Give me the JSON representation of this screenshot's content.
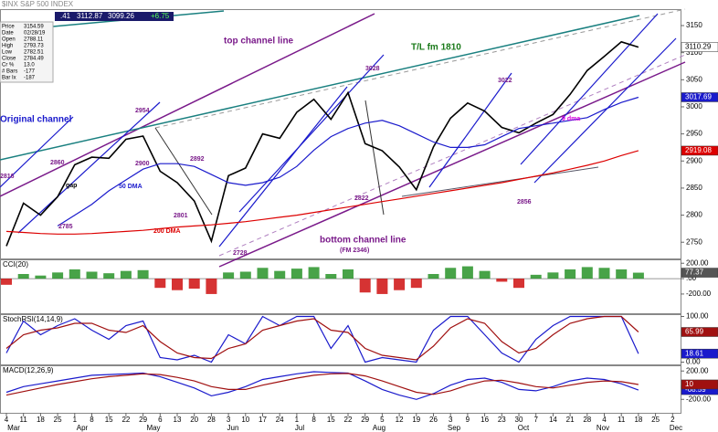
{
  "header": {
    "symbol": "$INX S&P 500 INDEX",
    "quote": [
      ".41",
      "3112.87",
      "3099.26",
      "+6.75"
    ]
  },
  "data_window": [
    [
      "Price",
      "3154.59"
    ],
    [
      "Date",
      "02/28/19"
    ],
    [
      "Open",
      "2788.11"
    ],
    [
      "High",
      "2793.73"
    ],
    [
      "Low",
      "2782.51"
    ],
    [
      "Close",
      "2784.49"
    ],
    [
      "Cr %",
      "13.0"
    ],
    [
      "# Bars",
      "-177"
    ],
    [
      "Bar Ix",
      "-187"
    ]
  ],
  "chart_data": [
    {
      "type": "line",
      "categories": [
        "4",
        "11",
        "18",
        "25",
        "1",
        "8",
        "15",
        "22",
        "29",
        "6",
        "13",
        "20",
        "28",
        "3",
        "10",
        "17",
        "24",
        "1",
        "8",
        "15",
        "22",
        "29",
        "5",
        "12",
        "19",
        "26",
        "3",
        "9",
        "16",
        "23",
        "30",
        "7",
        "14",
        "21",
        "28",
        "4",
        "11",
        "18",
        "25",
        "2"
      ],
      "months": [
        "Mar",
        "Apr",
        "May",
        "Jun",
        "Jul",
        "Aug",
        "Sep",
        "Oct",
        "Nov",
        "Dec"
      ],
      "ylim": [
        2720,
        3177
      ],
      "yticks": [
        2750,
        2800,
        2850,
        2900,
        2950,
        3000,
        3050,
        3100,
        3150
      ],
      "series": [
        {
          "name": "S&P 500",
          "color": "#000000",
          "values": [
            2743,
            2822,
            2800,
            2834,
            2893,
            2907,
            2905,
            2940,
            2946,
            2881,
            2860,
            2826,
            2752,
            2873,
            2887,
            2950,
            2942,
            2990,
            3014,
            2977,
            3026,
            2932,
            2919,
            2889,
            2847,
            2926,
            2979,
            3007,
            2992,
            2962,
            2952,
            2970,
            2986,
            3023,
            3067,
            3093,
            3120,
            3110.29,
            null,
            null
          ]
        },
        {
          "name": "50 DMA",
          "color": "#1a1acc",
          "values": [
            null,
            null,
            null,
            2780,
            2800,
            2820,
            2845,
            2865,
            2885,
            2895,
            2895,
            2890,
            2875,
            2860,
            2855,
            2860,
            2870,
            2890,
            2920,
            2945,
            2960,
            2970,
            2975,
            2965,
            2950,
            2935,
            2925,
            2925,
            2930,
            2945,
            2960,
            2965,
            2970,
            2975,
            2980,
            2995,
            3008,
            3017.69,
            null,
            null
          ]
        },
        {
          "name": "200 DMA",
          "color": "#dd0000",
          "values": [
            2770,
            2768,
            2766,
            2765,
            2765,
            2766,
            2768,
            2770,
            2772,
            2775,
            2778,
            2780,
            2782,
            2785,
            2788,
            2792,
            2796,
            2800,
            2805,
            2810,
            2815,
            2820,
            2825,
            2830,
            2835,
            2840,
            2845,
            2850,
            2855,
            2860,
            2866,
            2872,
            2878,
            2885,
            2892,
            2900,
            2910,
            2919.08,
            null,
            null
          ]
        }
      ],
      "annotations": [
        {
          "text": "top channel line",
          "color": "#7a1a8a"
        },
        {
          "text": "T/L fm 1810",
          "color": "#1a7a1a"
        },
        {
          "text": "Original channel",
          "color": "#1a1acc"
        },
        {
          "text": "bottom channel line",
          "color": "#7a1a8a"
        },
        {
          "text": "(FM 2346)",
          "color": "#7a1a8a"
        },
        {
          "text": "2954",
          "color": "#7a1a8a"
        },
        {
          "text": "3028",
          "color": "#7a1a8a"
        },
        {
          "text": "3022",
          "color": "#7a1a8a"
        },
        {
          "text": "2728",
          "color": "#7a1a8a"
        },
        {
          "text": "2822",
          "color": "#7a1a8a"
        },
        {
          "text": "2856",
          "color": "#7a1a8a"
        },
        {
          "text": "50 DMA",
          "color": "#1a1acc"
        },
        {
          "text": "200 DMA",
          "color": "#dd0000"
        },
        {
          "text": "9 dma",
          "color": "#dd00dd"
        },
        {
          "text": "2900",
          "color": "#7a1a8a"
        },
        {
          "text": "2892",
          "color": "#7a1a8a"
        },
        {
          "text": "2801",
          "color": "#7a1a8a"
        },
        {
          "text": "2860",
          "color": "#7a1a8a"
        },
        {
          "text": "2785",
          "color": "#7a1a8a"
        },
        {
          "text": "2816",
          "color": "#7a1a8a"
        },
        {
          "text": "gap",
          "color": "#000000"
        }
      ]
    },
    {
      "type": "bar",
      "title": "CCI(20)",
      "color": "#1a8c1a",
      "negative_color": "#cc0000",
      "ylim": [
        -450,
        250
      ],
      "yticks": [
        {
          "value": 200,
          "label": "200.00"
        },
        {
          "value": 0,
          "label": ".00"
        },
        {
          "value": -200,
          "label": "-200.00"
        }
      ],
      "values": [
        -80,
        60,
        40,
        80,
        120,
        90,
        70,
        100,
        110,
        -120,
        -150,
        -130,
        -200,
        80,
        90,
        140,
        100,
        130,
        150,
        60,
        120,
        -180,
        -200,
        -150,
        -120,
        60,
        140,
        160,
        100,
        -40,
        -120,
        50,
        80,
        120,
        150,
        140,
        120,
        77.37,
        null,
        null
      ]
    },
    {
      "type": "line",
      "title": "StochRSI(14,14,9)",
      "ylim": [
        -5,
        105
      ],
      "yticks": [
        {
          "value": 100,
          "label": "100.00"
        },
        {
          "value": 0,
          "label": "0.00"
        }
      ],
      "series": [
        {
          "name": "StochRSI",
          "color": "#1a1acc",
          "values": [
            20,
            90,
            60,
            80,
            95,
            70,
            50,
            80,
            90,
            10,
            5,
            15,
            0,
            60,
            40,
            100,
            80,
            100,
            100,
            30,
            80,
            0,
            10,
            5,
            0,
            70,
            100,
            100,
            60,
            20,
            0,
            50,
            80,
            100,
            100,
            100,
            100,
            18.61,
            null,
            null
          ]
        },
        {
          "name": "Signal",
          "color": "#a01010",
          "values": [
            30,
            60,
            70,
            75,
            85,
            85,
            70,
            65,
            80,
            45,
            20,
            10,
            8,
            30,
            40,
            70,
            80,
            90,
            95,
            70,
            65,
            30,
            15,
            10,
            5,
            35,
            75,
            95,
            85,
            45,
            20,
            30,
            60,
            85,
            95,
            100,
            100,
            65.99,
            null,
            null
          ]
        }
      ]
    },
    {
      "type": "line",
      "title": "MACD(12,26,9)",
      "ylim": [
        -390,
        280
      ],
      "yticks": [
        {
          "value": 200,
          "label": "200.00"
        },
        {
          "value": -200,
          "label": "-200.00"
        }
      ],
      "series": [
        {
          "name": "MACD",
          "color": "#1a1acc",
          "values": [
            -100,
            -20,
            20,
            60,
            100,
            140,
            150,
            160,
            170,
            120,
            40,
            -40,
            -150,
            -100,
            -20,
            80,
            120,
            160,
            190,
            180,
            170,
            60,
            -60,
            -140,
            -200,
            -120,
            0,
            80,
            100,
            40,
            -60,
            -80,
            -20,
            60,
            100,
            80,
            20,
            -68.59,
            null,
            null
          ]
        },
        {
          "name": "Signal",
          "color": "#a01010",
          "values": [
            -140,
            -90,
            -40,
            10,
            50,
            90,
            120,
            140,
            160,
            150,
            110,
            60,
            -20,
            -60,
            -60,
            0,
            50,
            100,
            140,
            160,
            165,
            130,
            60,
            -20,
            -100,
            -130,
            -80,
            0,
            60,
            70,
            30,
            -20,
            -40,
            0,
            40,
            60,
            50,
            10,
            null,
            null
          ]
        }
      ]
    }
  ]
}
